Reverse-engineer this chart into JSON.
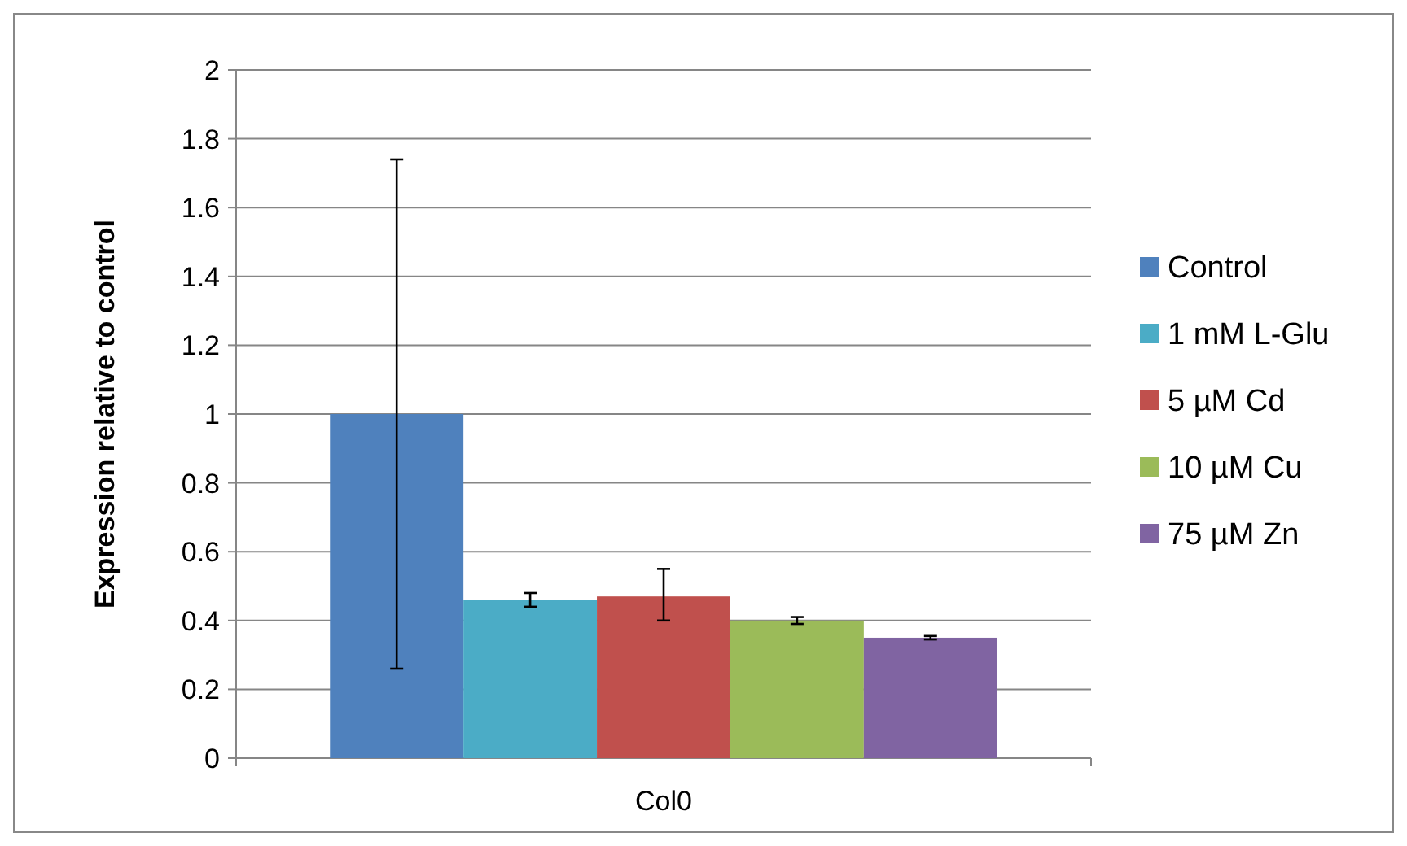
{
  "chart_data": {
    "type": "bar",
    "ylabel": "Expression relative to control",
    "categories": [
      "Col0"
    ],
    "series": [
      {
        "name": "Control",
        "color": "#4f81bd",
        "values": [
          1
        ],
        "errors": [
          [
            0.26,
            1.74
          ]
        ]
      },
      {
        "name": "1 mM L-Glu",
        "color": "#4bacc6",
        "values": [
          0.46
        ],
        "errors": [
          [
            0.44,
            0.48
          ]
        ]
      },
      {
        "name": "5 µM Cd",
        "color": "#c0504d",
        "values": [
          0.47
        ],
        "errors": [
          [
            0.4,
            0.55
          ]
        ]
      },
      {
        "name": "10 µM Cu",
        "color": "#9bbb59",
        "values": [
          0.4
        ],
        "errors": [
          [
            0.39,
            0.41
          ]
        ]
      },
      {
        "name": "75 µM Zn",
        "color": "#8064a2",
        "values": [
          0.35
        ],
        "errors": [
          [
            0.345,
            0.355
          ]
        ]
      }
    ],
    "ylim": [
      0,
      2
    ],
    "yticks": [
      0,
      0.2,
      0.4,
      0.6,
      0.8,
      1,
      1.2,
      1.4,
      1.6,
      1.8,
      2
    ],
    "grid": "y",
    "legend": "right"
  }
}
